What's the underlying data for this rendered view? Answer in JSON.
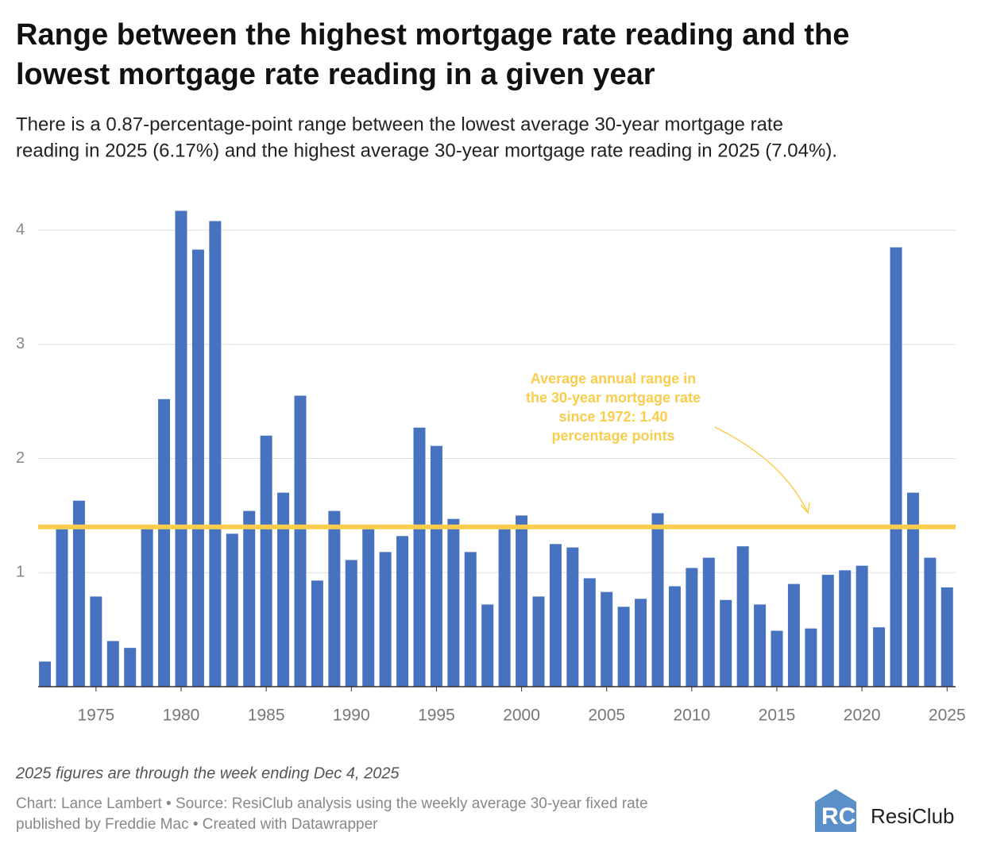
{
  "chart_data": {
    "type": "bar",
    "title": [
      "Range between the highest mortgage rate reading and the",
      "lowest mortgage rate reading in a given year"
    ],
    "subtitle": [
      "There is a 0.87-percentage-point range between the lowest average 30-year mortgage rate",
      "reading in 2025 (6.17%) and the highest average 30-year mortgage rate reading in 2025 (7.04%)."
    ],
    "x": [
      1972,
      1973,
      1974,
      1975,
      1976,
      1977,
      1978,
      1979,
      1980,
      1981,
      1982,
      1983,
      1984,
      1985,
      1986,
      1987,
      1988,
      1989,
      1990,
      1991,
      1992,
      1993,
      1994,
      1995,
      1996,
      1997,
      1998,
      1999,
      2000,
      2001,
      2002,
      2003,
      2004,
      2005,
      2006,
      2007,
      2008,
      2009,
      2010,
      2011,
      2012,
      2013,
      2014,
      2015,
      2016,
      2017,
      2018,
      2019,
      2020,
      2021,
      2022,
      2023,
      2024,
      2025
    ],
    "values": [
      0.22,
      1.38,
      1.63,
      0.79,
      0.4,
      0.34,
      1.38,
      2.52,
      4.17,
      3.83,
      4.08,
      1.34,
      1.54,
      2.2,
      1.7,
      2.55,
      0.93,
      1.54,
      1.11,
      1.38,
      1.18,
      1.32,
      2.27,
      2.11,
      1.47,
      1.18,
      0.72,
      1.38,
      1.5,
      0.79,
      1.25,
      1.22,
      0.95,
      0.83,
      0.7,
      0.77,
      1.52,
      0.88,
      1.04,
      1.13,
      0.76,
      1.23,
      0.72,
      0.49,
      0.9,
      0.51,
      0.98,
      1.02,
      1.06,
      0.52,
      3.85,
      1.7,
      1.13,
      0.87
    ],
    "color": "#4672c0",
    "xlim": [
      1971.6,
      2025.5
    ],
    "xticks": [
      1975,
      1980,
      1985,
      1990,
      1995,
      2000,
      2005,
      2010,
      2015,
      2020,
      2025
    ],
    "ylim": [
      0,
      4.2
    ],
    "yticks": [
      1,
      2,
      3,
      4
    ],
    "grid": true,
    "reference_line": {
      "value": 1.4,
      "color": "#fbcd4c",
      "annotation": [
        "Average annual range in",
        "the 30-year mortgage rate",
        "since 1972: 1.40",
        "percentage points"
      ]
    },
    "note": "2025 figures are through the week ending Dec 4, 2025",
    "credits": [
      "Chart: Lance Lambert  • Source: ResiClub analysis using the weekly average 30-year fixed rate",
      "published by Freddie Mac • Created with Datawrapper"
    ],
    "logo": "ResiClub"
  }
}
